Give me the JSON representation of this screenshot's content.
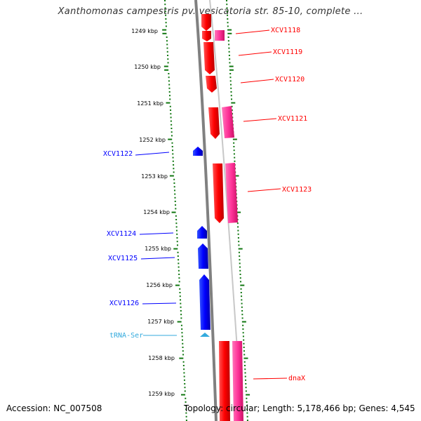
{
  "title": "Xanthomonas campestris pv. vesicatoria str. 85-10, complete ...",
  "footer": {
    "accession": "Accession: NC_007508",
    "topology": "Topology: circular; Length: 5,178,466 bp; Genes: 4,545"
  },
  "colors": {
    "forward_gene": "#ff0000",
    "forward_cds": "#ff3399",
    "reverse_gene": "#0000ff",
    "trna": "#33aadd",
    "backbone": "#808080",
    "ticks": "#117711"
  },
  "kbp_labels": [
    "1249 kbp",
    "1250 kbp",
    "1251 kbp",
    "1252 kbp",
    "1253 kbp",
    "1254 kbp",
    "1255 kbp",
    "1256 kbp",
    "1257 kbp",
    "1258 kbp",
    "1259 kbp"
  ],
  "genes": [
    {
      "name": "XCV1118",
      "strand": "forward"
    },
    {
      "name": "XCV1119",
      "strand": "forward"
    },
    {
      "name": "XCV1120",
      "strand": "forward"
    },
    {
      "name": "XCV1121",
      "strand": "forward"
    },
    {
      "name": "XCV1122",
      "strand": "reverse"
    },
    {
      "name": "XCV1123",
      "strand": "forward"
    },
    {
      "name": "XCV1124",
      "strand": "reverse"
    },
    {
      "name": "XCV1125",
      "strand": "reverse"
    },
    {
      "name": "XCV1126",
      "strand": "reverse"
    },
    {
      "name": "tRNA-Ser",
      "strand": "reverse"
    },
    {
      "name": "dnaX",
      "strand": "forward"
    }
  ]
}
